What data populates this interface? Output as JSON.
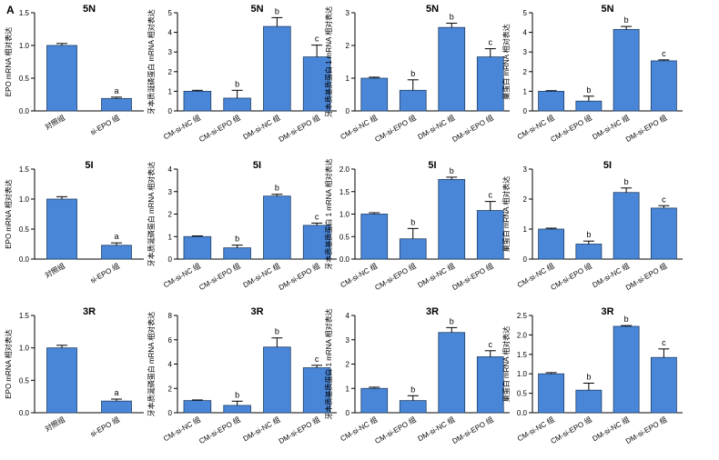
{
  "figure": {
    "panel_letter": "A",
    "bar_color": "#4a86d8"
  },
  "chart_data": [
    {
      "type": "bar",
      "title": "5N",
      "ylabel": "EPO mRNA 相对表达",
      "ylim": [
        0,
        1.5
      ],
      "yticks": [
        0,
        0.5,
        1.0,
        1.5
      ],
      "categories": [
        "对照组",
        "si-EPO 组"
      ],
      "values": [
        1.0,
        0.19
      ],
      "errors": [
        0.03,
        0.02
      ],
      "sig": [
        "",
        "a"
      ]
    },
    {
      "type": "bar",
      "title": "5N",
      "ylabel": "牙本质涎磷蛋白 mRNA 相对表达",
      "ylim": [
        0,
        5
      ],
      "yticks": [
        0,
        1,
        2,
        3,
        4,
        5
      ],
      "categories": [
        "CM-si-NC 组",
        "CM-si-EPO 组",
        "DM-si-NC 组",
        "DM-si-EPO 组"
      ],
      "values": [
        1.0,
        0.65,
        4.3,
        2.75
      ],
      "errors": [
        0.05,
        0.4,
        0.45,
        0.6
      ],
      "sig": [
        "",
        "b",
        "b",
        "c"
      ]
    },
    {
      "type": "bar",
      "title": "5N",
      "ylabel": "牙本质基质蛋白 1 mRNA 相对表达",
      "ylim": [
        0,
        3
      ],
      "yticks": [
        0,
        1,
        2,
        3
      ],
      "categories": [
        "CM-si-NC 组",
        "CM-si-EPO 组",
        "DM-si-NC 组",
        "DM-si-EPO 组"
      ],
      "values": [
        1.0,
        0.63,
        2.55,
        1.65
      ],
      "errors": [
        0.03,
        0.32,
        0.13,
        0.25
      ],
      "sig": [
        "",
        "b",
        "b",
        "c"
      ]
    },
    {
      "type": "bar",
      "title": "5N",
      "ylabel": "巢蛋白 mRNA 相对表达",
      "ylim": [
        0,
        5
      ],
      "yticks": [
        0,
        1,
        2,
        3,
        4,
        5
      ],
      "categories": [
        "CM-si-NC 组",
        "CM-si-EPO 组",
        "DM-si-NC 组",
        "DM-si-EPO 组"
      ],
      "values": [
        1.0,
        0.5,
        4.15,
        2.55
      ],
      "errors": [
        0.03,
        0.25,
        0.15,
        0.05
      ],
      "sig": [
        "",
        "b",
        "b",
        "c"
      ]
    },
    {
      "type": "bar",
      "title": "5I",
      "ylabel": "EPO mRNA 相对表达",
      "ylim": [
        0,
        1.5
      ],
      "yticks": [
        0,
        0.5,
        1.0,
        1.5
      ],
      "categories": [
        "对照组",
        "si-EPO 组"
      ],
      "values": [
        1.0,
        0.23
      ],
      "errors": [
        0.04,
        0.04
      ],
      "sig": [
        "",
        "a"
      ]
    },
    {
      "type": "bar",
      "title": "5I",
      "ylabel": "牙本质涎磷蛋白 mRNA 相对表达",
      "ylim": [
        0,
        4
      ],
      "yticks": [
        0,
        1,
        2,
        3,
        4
      ],
      "categories": [
        "CM-si-NC 组",
        "CM-si-EPO 组",
        "DM-si-NC 组",
        "DM-si-EPO 组"
      ],
      "values": [
        1.0,
        0.5,
        2.8,
        1.5
      ],
      "errors": [
        0.03,
        0.12,
        0.08,
        0.1
      ],
      "sig": [
        "",
        "b",
        "b",
        "c"
      ]
    },
    {
      "type": "bar",
      "title": "5I",
      "ylabel": "牙本质基质蛋白 1 mRNA 相对表达",
      "ylim": [
        0,
        2.0
      ],
      "yticks": [
        0,
        0.5,
        1.0,
        1.5,
        2.0
      ],
      "categories": [
        "CM-si-NC 组",
        "CM-si-EPO 组",
        "DM-si-NC 组",
        "DM-si-EPO 组"
      ],
      "values": [
        1.0,
        0.45,
        1.77,
        1.08
      ],
      "errors": [
        0.03,
        0.23,
        0.05,
        0.2
      ],
      "sig": [
        "",
        "b",
        "b",
        "c"
      ]
    },
    {
      "type": "bar",
      "title": "5I",
      "ylabel": "巢蛋白 mRNA 相对表达",
      "ylim": [
        0,
        3
      ],
      "yticks": [
        0,
        1,
        2,
        3
      ],
      "categories": [
        "CM-si-NC 组",
        "CM-si-EPO 组",
        "DM-si-NC 组",
        "DM-si-EPO 组"
      ],
      "values": [
        1.0,
        0.5,
        2.22,
        1.7
      ],
      "errors": [
        0.03,
        0.1,
        0.15,
        0.08
      ],
      "sig": [
        "",
        "b",
        "b",
        "c"
      ]
    },
    {
      "type": "bar",
      "title": "3R",
      "ylabel": "EPO mRNA 相对表达",
      "ylim": [
        0,
        1.5
      ],
      "yticks": [
        0,
        0.5,
        1.0,
        1.5
      ],
      "categories": [
        "对照组",
        "si-EPO 组"
      ],
      "values": [
        1.0,
        0.18
      ],
      "errors": [
        0.04,
        0.03
      ],
      "sig": [
        "",
        "a"
      ]
    },
    {
      "type": "bar",
      "title": "3R",
      "ylabel": "牙本质涎磷蛋白 mRNA 相对表达",
      "ylim": [
        0,
        8
      ],
      "yticks": [
        0,
        2,
        4,
        6,
        8
      ],
      "categories": [
        "CM-si-NC 组",
        "CM-si-EPO 组",
        "DM-si-NC 组",
        "DM-si-EPO 组"
      ],
      "values": [
        1.0,
        0.6,
        5.4,
        3.7
      ],
      "errors": [
        0.05,
        0.35,
        0.75,
        0.2
      ],
      "sig": [
        "",
        "b",
        "b",
        "c"
      ]
    },
    {
      "type": "bar",
      "title": "3R",
      "ylabel": "牙本质基质蛋白 1 mRNA 相对表达",
      "ylim": [
        0,
        4
      ],
      "yticks": [
        0,
        1,
        2,
        3,
        4
      ],
      "categories": [
        "CM-si-NC 组",
        "CM-si-EPO 组",
        "DM-si-NC 组",
        "DM-si-EPO 组"
      ],
      "values": [
        1.0,
        0.5,
        3.3,
        2.3
      ],
      "errors": [
        0.05,
        0.2,
        0.2,
        0.25
      ],
      "sig": [
        "",
        "b",
        "b",
        "c"
      ]
    },
    {
      "type": "bar",
      "title": "3R",
      "ylabel": "巢蛋白 mRNA 相对表达",
      "ylim": [
        0,
        2.5
      ],
      "yticks": [
        0,
        0.5,
        1.0,
        1.5,
        2.0,
        2.5
      ],
      "categories": [
        "CM-si-NC 组",
        "CM-si-EPO 组",
        "DM-si-NC 组",
        "DM-si-EPO 组"
      ],
      "values": [
        1.0,
        0.58,
        2.22,
        1.42
      ],
      "errors": [
        0.03,
        0.18,
        0.02,
        0.22
      ],
      "sig": [
        "",
        "b",
        "b",
        "c"
      ]
    }
  ]
}
